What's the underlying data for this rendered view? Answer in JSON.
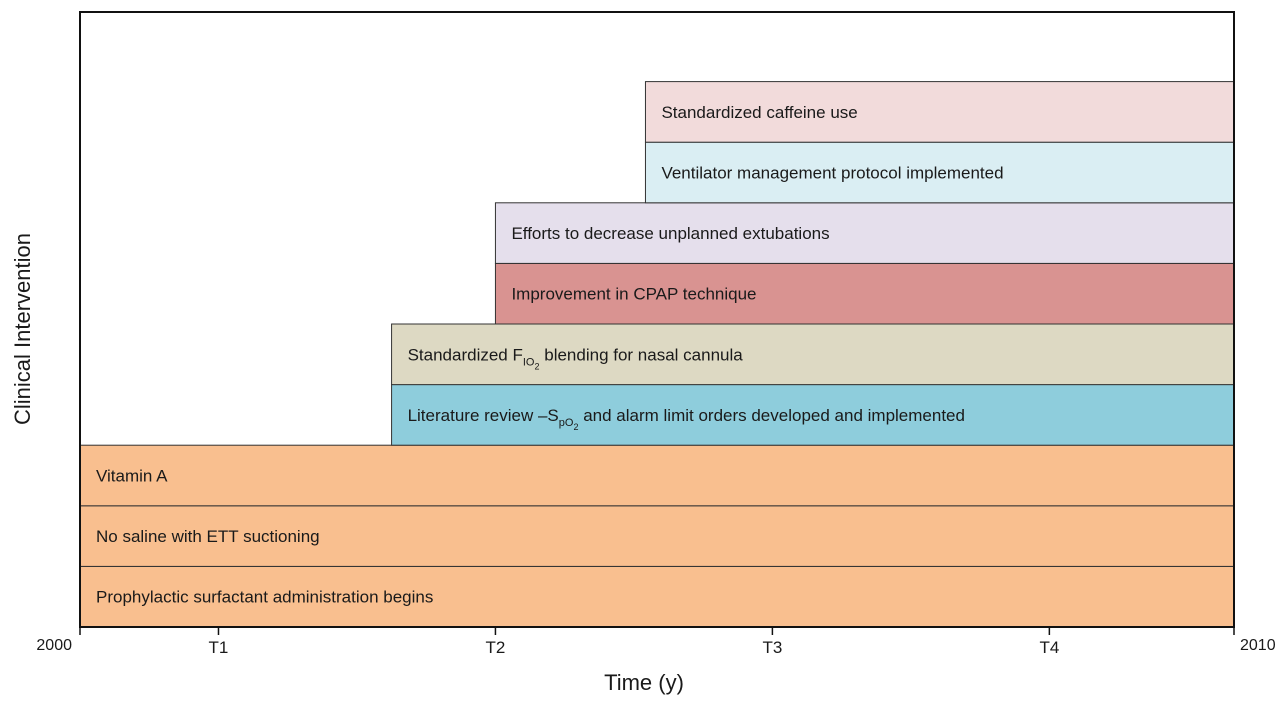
{
  "chart_data": {
    "type": "timeline",
    "x_label": "Time (y)",
    "y_label": "Clinical Intervention",
    "xlim": [
      2000,
      2010
    ],
    "xticks": [
      2000,
      {
        "value": 2001.2,
        "label": "T1"
      },
      {
        "value": 2003.6,
        "label": "T2"
      },
      {
        "value": 2006,
        "label": "T3"
      },
      {
        "value": 2008.4,
        "label": "T4"
      },
      2010
    ],
    "bars": [
      {
        "label": "Prophylactic surfactant administration begins",
        "start": 2000,
        "end": 2010,
        "color": "#f9bf8f"
      },
      {
        "label": "No saline with ETT suctioning",
        "start": 2000,
        "end": 2010,
        "color": "#f9bf8f"
      },
      {
        "label": "Vitamin A",
        "start": 2000,
        "end": 2010,
        "color": "#f9bf8f"
      },
      {
        "label": [
          "Literature review –S",
          "pO",
          "2",
          " and alarm limit orders developed and implemented"
        ],
        "start": 2002.7,
        "end": 2010,
        "color": "#8ecddc"
      },
      {
        "label": [
          "Standardized F",
          "IO",
          "2",
          " blending for nasal cannula"
        ],
        "start": 2002.7,
        "end": 2010,
        "color": "#ddd9c3"
      },
      {
        "label": "Improvement in CPAP technique",
        "start": 2003.6,
        "end": 2010,
        "color": "#d99391"
      },
      {
        "label": "Efforts to decrease unplanned extubations",
        "start": 2003.6,
        "end": 2010,
        "color": "#e5dfec"
      },
      {
        "label": "Ventilator management protocol implemented",
        "start": 2004.9,
        "end": 2010,
        "color": "#daeef3"
      },
      {
        "label": "Standardized caffeine use",
        "start": 2004.9,
        "end": 2010,
        "color": "#f2dbdb"
      }
    ]
  }
}
